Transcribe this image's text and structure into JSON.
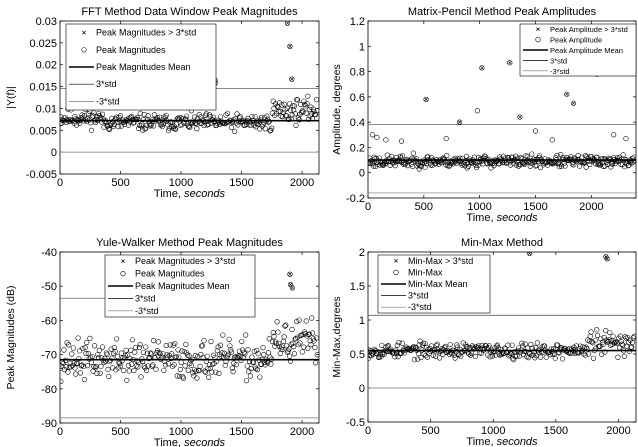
{
  "chart_data": [
    {
      "type": "scatter",
      "title": "FFT Method Data Window Peak Magnitudes",
      "xlabel": "Time, seconds",
      "ylabel": "|Y(f)|",
      "xlim": [
        0,
        2140
      ],
      "ylim": [
        -0.005,
        0.03
      ],
      "xticks": [
        "0",
        "500",
        "1000",
        "1500",
        "2000"
      ],
      "xtick_values": [
        0,
        500,
        1000,
        1500,
        2000
      ],
      "yticks": [
        "-0.005",
        "0",
        "0.005",
        "0.01",
        "0.015",
        "0.02",
        "0.025",
        "0.03"
      ],
      "ytick_values": [
        -0.005,
        0,
        0.005,
        0.01,
        0.015,
        0.02,
        0.025,
        0.03
      ],
      "grid": false,
      "legend_position": "top-left",
      "legend": [
        "Peak Magnitudes > 3*std",
        "Peak Magnitudes",
        "Peak Magnitudes Mean",
        "3*std",
        "-3*std"
      ],
      "mean": 0.0072,
      "upper": 0.0146,
      "lower": 0.0,
      "outliers": {
        "x": [
          1280,
          1285,
          1880,
          1900,
          1915
        ],
        "y": [
          0.0165,
          0.0158,
          0.0295,
          0.0242,
          0.0167
        ]
      },
      "samples": {
        "seed": 11,
        "x_start": 0,
        "x_end": 2130,
        "step": 6.5,
        "bands": [
          {
            "from": 0,
            "to": 350,
            "center": 0.0078,
            "spread": 0.0022
          },
          {
            "from": 350,
            "to": 1750,
            "center": 0.0068,
            "spread": 0.002
          },
          {
            "from": 1750,
            "to": 2140,
            "center": 0.0095,
            "spread": 0.0028
          }
        ]
      }
    },
    {
      "type": "scatter",
      "title": "Matrix-Pencil Method Peak Amplitudes",
      "xlabel": "Time, seconds",
      "ylabel": "Amplitude, degrees",
      "xlim": [
        0,
        2400
      ],
      "ylim": [
        -0.2,
        1.2
      ],
      "xticks": [
        "0",
        "500",
        "1000",
        "1500",
        "2000"
      ],
      "xtick_values": [
        0,
        500,
        1000,
        1500,
        2000
      ],
      "yticks": [
        "-0.2",
        "0",
        "0.2",
        "0.4",
        "0.6",
        "0.8",
        "1",
        "1.2"
      ],
      "ytick_values": [
        -0.2,
        0,
        0.2,
        0.4,
        0.6,
        0.8,
        1,
        1.2
      ],
      "grid": false,
      "legend_position": "top-right",
      "legend": [
        "Peak Amplitude > 3*std",
        "Peak Amplitude",
        "Peak Amplitude Mean",
        "3*std",
        "-3*std"
      ],
      "mean": 0.1,
      "upper": 0.38,
      "lower": -0.16,
      "outliers": {
        "x": [
          520,
          820,
          1020,
          1270,
          1360,
          1450,
          1780,
          1840,
          2050
        ],
        "y": [
          0.58,
          0.4,
          0.83,
          0.87,
          0.44,
          0.88,
          0.62,
          0.55,
          0.78
        ]
      },
      "samples": {
        "seed": 23,
        "x_start": 10,
        "x_end": 2390,
        "step": 6.5,
        "bands": [
          {
            "from": 0,
            "to": 2400,
            "center": 0.09,
            "spread": 0.05
          }
        ]
      },
      "extra": {
        "x": [
          40,
          80,
          160,
          300,
          700,
          980,
          1500,
          1650,
          2200,
          2310
        ],
        "y": [
          0.3,
          0.28,
          0.26,
          0.25,
          0.27,
          0.49,
          0.33,
          0.26,
          0.3,
          0.27
        ]
      }
    },
    {
      "type": "scatter",
      "title": "Yule-Walker Method Peak Magnitudes",
      "xlabel": "Time, seconds",
      "ylabel": "Peak Magnitudes (dB)",
      "xlim": [
        0,
        2140
      ],
      "ylim": [
        -90,
        -40
      ],
      "xticks": [
        "0",
        "500",
        "1000",
        "1500",
        "2000"
      ],
      "xtick_values": [
        0,
        500,
        1000,
        1500,
        2000
      ],
      "yticks": [
        "-90",
        "-80",
        "-70",
        "-60",
        "-50",
        "-40"
      ],
      "ytick_values": [
        -90,
        -80,
        -70,
        -60,
        -50,
        -40
      ],
      "grid": false,
      "legend_position": "top-center",
      "legend": [
        "Peak Magnitudes > 3*std",
        "Peak Magnitudes",
        "Peak Magnitudes Mean",
        "3*std",
        "-3*std"
      ],
      "mean": -71.5,
      "upper": -53.5,
      "lower": -88.5,
      "outliers": {
        "x": [
          1900,
          1905,
          1920
        ],
        "y": [
          -46.5,
          -49.5,
          -50.5
        ]
      },
      "samples": {
        "seed": 37,
        "x_start": 0,
        "x_end": 2130,
        "step": 6.5,
        "bands": [
          {
            "from": 0,
            "to": 1750,
            "center": -71.5,
            "spread": 6.0
          },
          {
            "from": 1750,
            "to": 2140,
            "center": -66.5,
            "spread": 6.5
          }
        ]
      }
    },
    {
      "type": "scatter",
      "title": "Min-Max Method",
      "xlabel": "Time, seconds",
      "ylabel": "Min-Max,degrees",
      "xlim": [
        0,
        2140
      ],
      "ylim": [
        -0.5,
        2.0
      ],
      "xticks": [
        "0",
        "500",
        "1000",
        "1500",
        "2000"
      ],
      "xtick_values": [
        0,
        500,
        1000,
        1500,
        2000
      ],
      "yticks": [
        "-0.5",
        "0",
        "0.5",
        "1",
        "1.5",
        "2"
      ],
      "ytick_values": [
        -0.5,
        0,
        0.5,
        1,
        1.5,
        2
      ],
      "grid": false,
      "legend_position": "top-left",
      "legend": [
        "Min-Max > 3*std",
        "Min-Max",
        "Min-Max Mean",
        "3*std",
        "-3*std"
      ],
      "mean": 0.55,
      "upper": 1.07,
      "lower": 0.0,
      "outliers": {
        "x": [
          1290,
          1900,
          1910
        ],
        "y": [
          1.98,
          1.93,
          1.9
        ]
      },
      "samples": {
        "seed": 53,
        "x_start": 0,
        "x_end": 2130,
        "step": 6.5,
        "bands": [
          {
            "from": 0,
            "to": 1750,
            "center": 0.55,
            "spread": 0.12
          },
          {
            "from": 1750,
            "to": 2140,
            "center": 0.65,
            "spread": 0.2
          }
        ]
      }
    }
  ]
}
